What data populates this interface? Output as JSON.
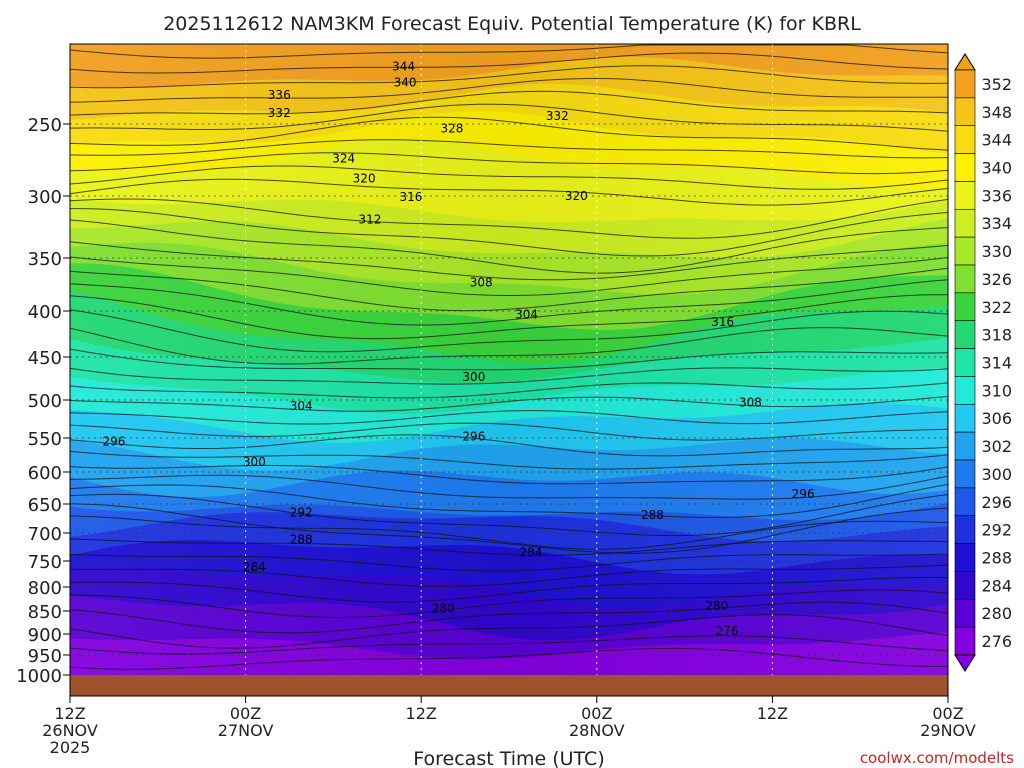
{
  "chart_data": {
    "type": "heatmap",
    "title": "2025112612 NAM3KM Forecast Equiv. Potential Temperature (K) for KBRL",
    "xlabel": "Forecast Time (UTC)",
    "ylabel": "",
    "credit": "coolwx.com/modelts",
    "y_ticks": [
      250,
      300,
      350,
      400,
      450,
      500,
      550,
      600,
      650,
      700,
      750,
      800,
      850,
      900,
      950,
      1000
    ],
    "y_ticks_text": [
      "250",
      "300",
      "350",
      "400",
      "450",
      "500",
      "550",
      "600",
      "650",
      "700",
      "750",
      "800",
      "850",
      "900",
      "950",
      "1000"
    ],
    "ylim": [
      1000,
      200
    ],
    "forecast_hours": [
      0,
      12,
      24,
      36,
      48,
      60
    ],
    "x_ticks": [
      {
        "time": "12Z",
        "date": "26NOV",
        "year": "2025"
      },
      {
        "time": "00Z",
        "date": "27NOV",
        "year": ""
      },
      {
        "time": "12Z",
        "date": "",
        "year": ""
      },
      {
        "time": "00Z",
        "date": "28NOV",
        "year": ""
      },
      {
        "time": "12Z",
        "date": "",
        "year": ""
      },
      {
        "time": "00Z",
        "date": "29NOV",
        "year": ""
      }
    ],
    "colorbar": {
      "labels": [
        "352",
        "348",
        "344",
        "340",
        "336",
        "334",
        "330",
        "326",
        "322",
        "318",
        "314",
        "310",
        "306",
        "302",
        "300",
        "296",
        "292",
        "288",
        "284",
        "280",
        "276"
      ],
      "colors": [
        "#f2a020",
        "#f5c418",
        "#f8dc10",
        "#fcf000",
        "#eaf418",
        "#cdee20",
        "#a9e828",
        "#7fe030",
        "#3ad43c",
        "#22d872",
        "#1ee4a6",
        "#22ead8",
        "#20c8f2",
        "#20a4f0",
        "#1e7cf0",
        "#1e58e8",
        "#1e32e0",
        "#1e10d4",
        "#3006d0",
        "#5a00d6",
        "#8400e0"
      ],
      "extend": "both"
    },
    "contour_labels": [
      {
        "text": "344",
        "hour": 22.8,
        "p": 214
      },
      {
        "text": "340",
        "hour": 22.9,
        "p": 224
      },
      {
        "text": "336",
        "hour": 14.3,
        "p": 232
      },
      {
        "text": "332",
        "hour": 14.3,
        "p": 243
      },
      {
        "text": "328",
        "hour": 26.1,
        "p": 253
      },
      {
        "text": "332",
        "hour": 33.3,
        "p": 245
      },
      {
        "text": "324",
        "hour": 18.7,
        "p": 274
      },
      {
        "text": "320",
        "hour": 20.1,
        "p": 288
      },
      {
        "text": "316",
        "hour": 23.3,
        "p": 301
      },
      {
        "text": "320",
        "hour": 34.6,
        "p": 300
      },
      {
        "text": "312",
        "hour": 20.5,
        "p": 319
      },
      {
        "text": "308",
        "hour": 28.1,
        "p": 373
      },
      {
        "text": "304",
        "hour": 31.2,
        "p": 404
      },
      {
        "text": "316",
        "hour": 44.6,
        "p": 412
      },
      {
        "text": "300",
        "hour": 27.6,
        "p": 473
      },
      {
        "text": "304",
        "hour": 15.8,
        "p": 508
      },
      {
        "text": "308",
        "hour": 46.5,
        "p": 503
      },
      {
        "text": "296",
        "hour": 27.6,
        "p": 548
      },
      {
        "text": "296",
        "hour": 3.0,
        "p": 555
      },
      {
        "text": "300",
        "hour": 12.6,
        "p": 585
      },
      {
        "text": "296",
        "hour": 50.1,
        "p": 634
      },
      {
        "text": "292",
        "hour": 15.8,
        "p": 665
      },
      {
        "text": "288",
        "hour": 39.8,
        "p": 669
      },
      {
        "text": "288",
        "hour": 15.8,
        "p": 712
      },
      {
        "text": "284",
        "hour": 31.5,
        "p": 735
      },
      {
        "text": "284",
        "hour": 12.6,
        "p": 762
      },
      {
        "text": "280",
        "hour": 25.5,
        "p": 845
      },
      {
        "text": "280",
        "hour": 44.2,
        "p": 840
      },
      {
        "text": "276",
        "hour": 44.9,
        "p": 894
      }
    ]
  }
}
